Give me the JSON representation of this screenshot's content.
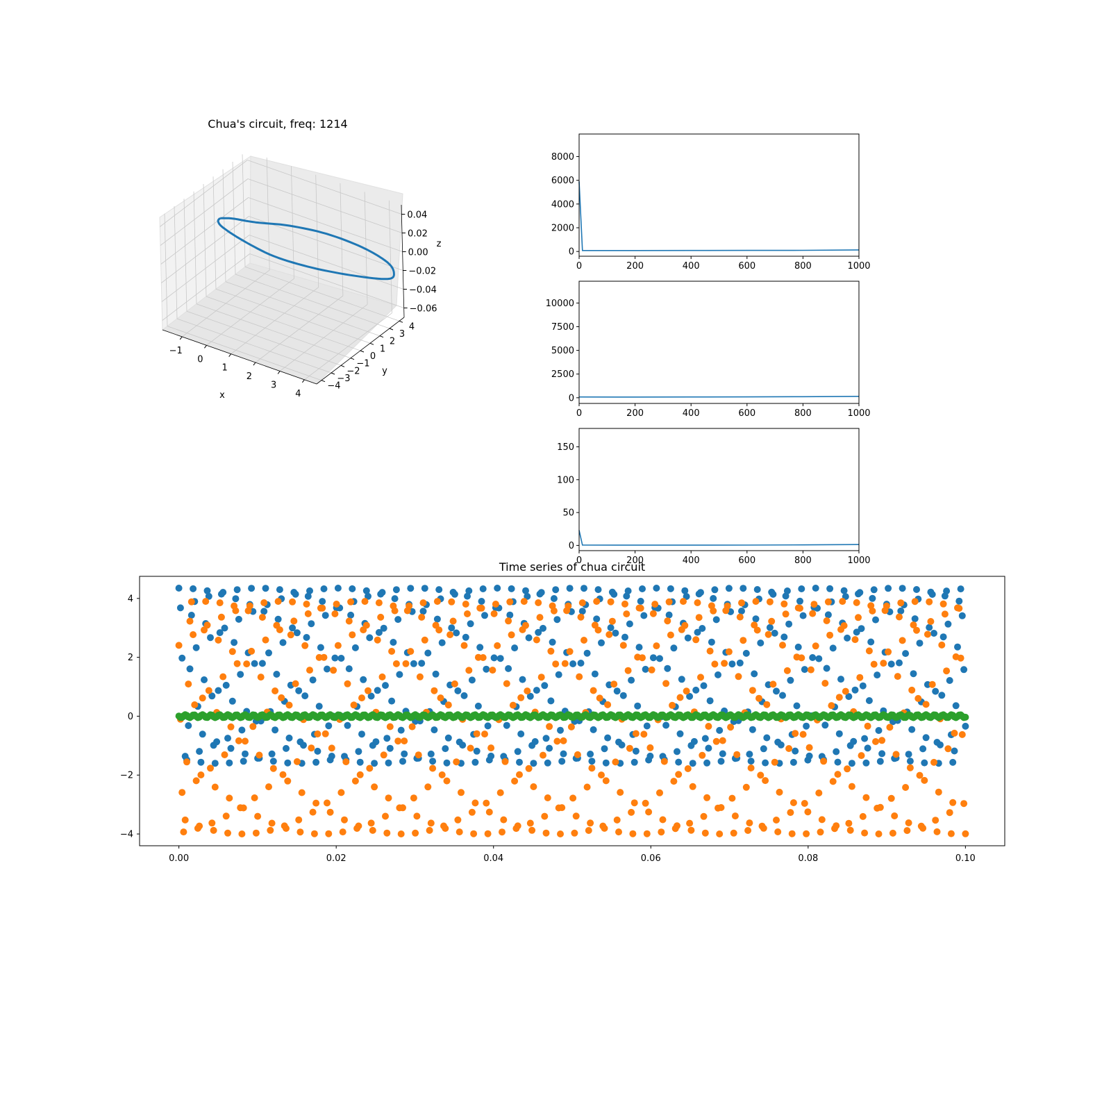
{
  "chart_data": [
    {
      "type": "line3d",
      "title": "Chua's circuit, freq: 1214",
      "xlabel": "x",
      "ylabel": "y",
      "zlabel": "z",
      "x_ticks": [
        "−1",
        "0",
        "1",
        "2",
        "3",
        "4"
      ],
      "y_ticks": [
        "−4",
        "−3",
        "−2",
        "−1",
        "0",
        "1",
        "2",
        "3",
        "4"
      ],
      "z_ticks": [
        "−0.06",
        "−0.04",
        "−0.02",
        "0.00",
        "0.02",
        "0.04"
      ],
      "xlim": [
        -1.8,
        4.5
      ],
      "ylim": [
        -4.5,
        4.5
      ],
      "zlim": [
        -0.07,
        0.05
      ],
      "trajectory": {
        "x": [
          -1.55,
          -1.1,
          -0.3,
          0.8,
          2.0,
          3.2,
          4.1,
          4.35,
          4.1,
          3.0,
          1.6,
          0.3,
          -0.7,
          -1.4,
          -1.6,
          -1.55
        ],
        "y": [
          1.0,
          1.2,
          1.5,
          2.2,
          3.0,
          3.6,
          3.9,
          3.95,
          3.9,
          3.3,
          2.5,
          1.8,
          1.2,
          0.9,
          0.9,
          1.0
        ],
        "z": [
          0.008,
          0.01,
          0.011,
          0.012,
          0.008,
          0.0,
          -0.01,
          -0.02,
          -0.028,
          -0.03,
          -0.028,
          -0.022,
          -0.01,
          0.0,
          0.005,
          0.008
        ]
      },
      "color": "#1f77b4"
    },
    {
      "type": "line",
      "xlim": [
        0,
        1000
      ],
      "ylim": [
        -400,
        9900
      ],
      "x_ticks": [
        "0",
        "200",
        "400",
        "600",
        "800",
        "1000"
      ],
      "y_ticks": [
        "0",
        "2000",
        "4000",
        "6000",
        "8000"
      ],
      "x": [
        0,
        12,
        200,
        400,
        600,
        800,
        1000
      ],
      "y": [
        5900,
        80,
        80,
        85,
        90,
        100,
        130
      ],
      "color": "#1f77b4"
    },
    {
      "type": "line",
      "xlim": [
        0,
        1000
      ],
      "ylim": [
        -600,
        12300
      ],
      "x_ticks": [
        "0",
        "200",
        "400",
        "600",
        "800",
        "1000"
      ],
      "y_ticks": [
        "0",
        "2500",
        "5000",
        "7500",
        "10000"
      ],
      "x": [
        0,
        200,
        400,
        600,
        800,
        1000
      ],
      "y": [
        80,
        75,
        80,
        90,
        110,
        150
      ],
      "color": "#1f77b4"
    },
    {
      "type": "line",
      "xlim": [
        0,
        1000
      ],
      "ylim": [
        -8,
        178
      ],
      "x_ticks": [
        "0",
        "200",
        "400",
        "600",
        "800",
        "1000"
      ],
      "y_ticks": [
        "0",
        "50",
        "100",
        "150"
      ],
      "x": [
        0,
        12,
        200,
        400,
        600,
        800,
        1000
      ],
      "y": [
        23,
        0.5,
        0.4,
        0.4,
        0.5,
        0.8,
        1.3
      ],
      "color": "#1f77b4"
    },
    {
      "type": "scatter",
      "title": "Time series of chua circuit",
      "xlim": [
        -0.005,
        0.105
      ],
      "ylim": [
        -4.4,
        4.75
      ],
      "x_ticks": [
        "0.00",
        "0.02",
        "0.04",
        "0.06",
        "0.08",
        "0.10"
      ],
      "y_ticks": [
        "−4",
        "−2",
        "0",
        "2",
        "4"
      ],
      "n_points": 500,
      "t_range": [
        0,
        0.1
      ],
      "series": [
        {
          "color": "#1f77b4",
          "min": -1.6,
          "max": 4.35,
          "period": 0.00184
        },
        {
          "color": "#ff7f0e",
          "min": -4.0,
          "max": 3.9,
          "period": 0.00184
        },
        {
          "color": "#2ca02c",
          "min": -0.06,
          "max": 0.06,
          "period": 0.00184
        }
      ]
    }
  ]
}
